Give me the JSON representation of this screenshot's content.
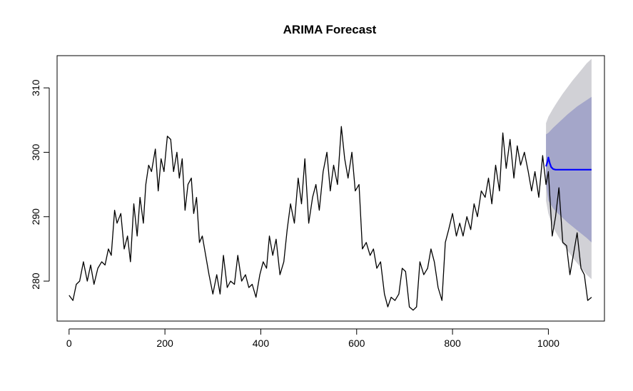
{
  "chart_data": {
    "type": "line",
    "title": "ARIMA Forecast",
    "xlabel": "",
    "ylabel": "",
    "xlim": [
      -25,
      1117
    ],
    "ylim": [
      273.8,
      315.0
    ],
    "x_ticks": [
      0,
      200,
      400,
      600,
      800,
      1000
    ],
    "y_ticks": [
      280,
      290,
      300,
      310
    ],
    "grid": false,
    "legend": "none",
    "series": [
      {
        "role": "observed",
        "color": "#000000",
        "x": [
          0,
          8,
          15,
          22,
          30,
          38,
          45,
          52,
          60,
          68,
          75,
          82,
          88,
          95,
          100,
          108,
          115,
          122,
          128,
          135,
          142,
          148,
          155,
          160,
          166,
          172,
          180,
          186,
          192,
          198,
          205,
          212,
          218,
          225,
          230,
          236,
          242,
          248,
          255,
          260,
          266,
          272,
          278,
          285,
          292,
          300,
          308,
          315,
          322,
          330,
          337,
          345,
          352,
          360,
          368,
          375,
          382,
          390,
          398,
          405,
          412,
          418,
          425,
          432,
          440,
          448,
          455,
          462,
          470,
          478,
          485,
          492,
          500,
          508,
          515,
          522,
          530,
          538,
          545,
          552,
          560,
          568,
          575,
          582,
          590,
          597,
          605,
          612,
          620,
          628,
          635,
          642,
          650,
          658,
          665,
          672,
          680,
          688,
          695,
          702,
          710,
          718,
          725,
          732,
          740,
          748,
          755,
          762,
          770,
          778,
          785,
          792,
          800,
          808,
          815,
          822,
          830,
          838,
          845,
          852,
          860,
          868,
          875,
          882,
          890,
          898,
          905,
          912,
          920,
          928,
          935,
          942,
          950,
          958,
          965,
          972,
          980,
          988,
          995,
          1000,
          1008,
          1015,
          1022,
          1030,
          1038,
          1045,
          1052,
          1060,
          1068,
          1075,
          1082,
          1090
        ],
        "y": [
          277.8,
          277.0,
          279.5,
          280.0,
          283.0,
          280.0,
          282.5,
          279.5,
          282.0,
          283.0,
          282.5,
          285.0,
          284.0,
          291.0,
          289.0,
          290.5,
          285.0,
          287.0,
          283.0,
          292.0,
          287.0,
          293.0,
          289.0,
          295.0,
          298.0,
          297.0,
          300.5,
          294.0,
          299.0,
          297.0,
          302.5,
          302.0,
          297.0,
          300.0,
          296.0,
          299.0,
          291.0,
          295.0,
          296.0,
          290.5,
          293.0,
          286.0,
          287.0,
          284.0,
          281.0,
          278.0,
          281.0,
          278.0,
          284.0,
          279.0,
          280.0,
          279.5,
          284.0,
          280.0,
          281.0,
          279.0,
          279.5,
          277.5,
          281.0,
          283.0,
          282.0,
          287.0,
          284.0,
          286.5,
          281.0,
          283.0,
          288.0,
          292.0,
          289.0,
          296.0,
          292.0,
          299.0,
          289.0,
          293.0,
          295.0,
          291.0,
          297.0,
          300.0,
          294.0,
          298.0,
          295.0,
          304.0,
          299.0,
          296.0,
          300.0,
          294.0,
          295.0,
          285.0,
          286.0,
          284.0,
          285.0,
          282.0,
          283.0,
          278.0,
          276.0,
          277.5,
          277.0,
          278.0,
          282.0,
          281.5,
          276.0,
          275.5,
          276.0,
          283.0,
          281.0,
          282.0,
          285.0,
          283.0,
          279.0,
          277.0,
          286.0,
          288.0,
          290.5,
          287.0,
          289.0,
          287.0,
          290.0,
          288.0,
          292.0,
          290.0,
          294.0,
          293.0,
          296.0,
          292.0,
          298.0,
          294.0,
          303.0,
          297.5,
          302.0,
          296.0,
          301.0,
          298.0,
          300.0,
          297.0,
          294.0,
          297.0,
          293.0,
          299.5,
          295.0,
          297.0,
          287.0,
          290.0,
          294.5,
          286.0,
          285.5,
          281.0,
          284.0,
          287.5,
          282.0,
          281.0,
          277.0,
          277.5
        ]
      },
      {
        "role": "forecast",
        "color": "#0000ff",
        "x": [
          995,
          998,
          1000,
          1003,
          1006,
          1010,
          1015,
          1020,
          1030,
          1050,
          1070,
          1090
        ],
        "y": [
          297.8,
          298.5,
          299.2,
          298.3,
          297.7,
          297.4,
          297.3,
          297.3,
          297.3,
          297.3,
          297.3,
          297.3
        ]
      }
    ],
    "intervals": [
      {
        "level": "95",
        "color": "#d1d1d6",
        "x": [
          995,
          1000,
          1010,
          1020,
          1030,
          1040,
          1050,
          1060,
          1070,
          1080,
          1090
        ],
        "upper": [
          304.5,
          305.5,
          306.8,
          308.0,
          309.1,
          310.1,
          311.1,
          312.0,
          312.9,
          313.8,
          314.5
        ],
        "lower": [
          292.5,
          290.5,
          288.3,
          287.0,
          285.8,
          284.8,
          283.7,
          282.8,
          281.9,
          281.0,
          280.3
        ]
      },
      {
        "level": "80",
        "color": "#a4a6c9",
        "x": [
          995,
          1000,
          1010,
          1020,
          1030,
          1040,
          1050,
          1060,
          1070,
          1080,
          1090
        ],
        "upper": [
          302.8,
          303.0,
          303.8,
          304.5,
          305.2,
          305.9,
          306.5,
          307.1,
          307.6,
          308.1,
          308.6
        ],
        "lower": [
          295.0,
          292.5,
          291.3,
          290.5,
          289.8,
          289.1,
          288.5,
          287.9,
          287.3,
          286.7,
          286.0
        ]
      }
    ]
  }
}
